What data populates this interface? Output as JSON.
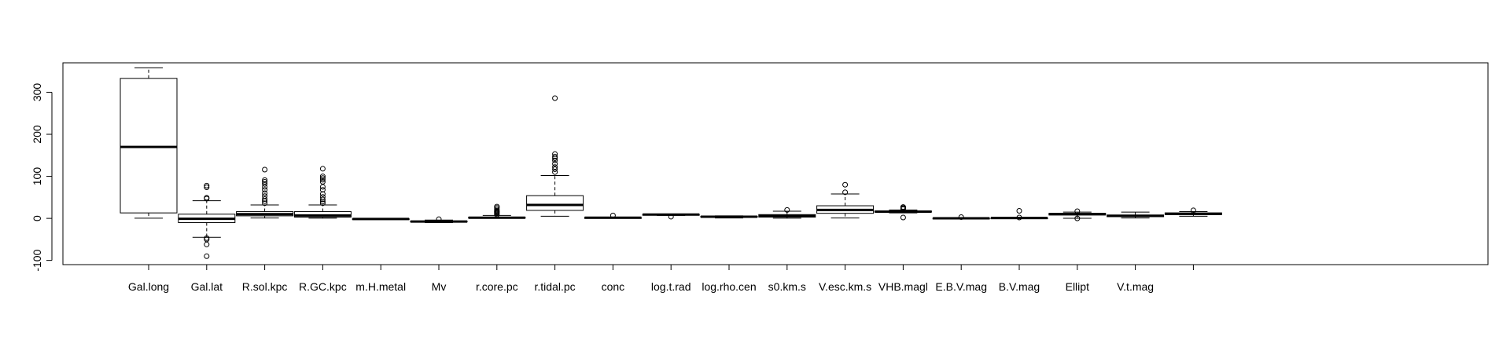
{
  "chart_data": {
    "type": "boxplot",
    "ylim": [
      -110,
      370
    ],
    "y_ticks": [
      -100,
      0,
      100,
      200,
      300
    ],
    "y_tick_labels": [
      "-100",
      "0",
      "100",
      "200",
      "300"
    ],
    "boxes": [
      {
        "label": "Gal.long",
        "min": 0.5,
        "q1": 13,
        "median": 170,
        "q3": 333,
        "max": 358,
        "outliers": []
      },
      {
        "label": "Gal.lat",
        "min": -45,
        "q1": -10,
        "median": -1,
        "q3": 10,
        "max": 42,
        "outliers": [
          47,
          49,
          74,
          78,
          -47,
          -50,
          -62,
          -90
        ]
      },
      {
        "label": "R.sol.kpc",
        "min": 1,
        "q1": 6,
        "median": 10,
        "q3": 16,
        "max": 32,
        "outliers": [
          36,
          41,
          46,
          53,
          60,
          68,
          75,
          82,
          87,
          91,
          116
        ]
      },
      {
        "label": "R.GC.kpc",
        "min": 0.5,
        "q1": 3,
        "median": 7,
        "q3": 16,
        "max": 32,
        "outliers": [
          36,
          40,
          45,
          51,
          58,
          68,
          75,
          87,
          92,
          96,
          100,
          118
        ]
      },
      {
        "label": "m.H.metal",
        "min": -2.5,
        "q1": -2,
        "median": -1.5,
        "q3": -1,
        "max": 0,
        "outliers": []
      },
      {
        "label": "Mv",
        "min": -10,
        "q1": -8.5,
        "median": -7.5,
        "q3": -6.5,
        "max": -4,
        "outliers": [
          -2
        ]
      },
      {
        "label": "r.core.pc",
        "min": 0.1,
        "q1": 0.5,
        "median": 1.5,
        "q3": 3,
        "max": 7,
        "outliers": [
          9,
          12,
          14,
          16,
          18,
          21,
          25,
          28
        ]
      },
      {
        "label": "r.tidal.pc",
        "min": 5,
        "q1": 19,
        "median": 32,
        "q3": 54,
        "max": 102,
        "outliers": [
          110,
          117,
          122,
          130,
          138,
          143,
          147,
          153,
          286
        ]
      },
      {
        "label": "conc",
        "min": 0.5,
        "q1": 1.2,
        "median": 1.5,
        "q3": 1.9,
        "max": 2.5,
        "outliers": [
          7
        ]
      },
      {
        "label": "log.t.rad",
        "min": 7,
        "q1": 8.5,
        "median": 9,
        "q3": 9.5,
        "max": 10.5,
        "outliers": [
          4
        ]
      },
      {
        "label": "log.rho.cen",
        "min": 1,
        "q1": 3,
        "median": 4,
        "q3": 5,
        "max": 6,
        "outliers": []
      },
      {
        "label": "s0.km.s",
        "min": 0.5,
        "q1": 3,
        "median": 5.5,
        "q3": 9,
        "max": 17,
        "outliers": [
          20
        ]
      },
      {
        "label": "V.esc.km.s",
        "min": 1,
        "q1": 12,
        "median": 20,
        "q3": 30,
        "max": 58,
        "outliers": [
          62,
          80
        ]
      },
      {
        "label": "VHB.magl",
        "min": 13,
        "q1": 15,
        "median": 16,
        "q3": 17.5,
        "max": 20,
        "outliers": [
          22,
          24,
          26,
          27,
          2
        ]
      },
      {
        "label": "E.B.V.mag",
        "min": 0,
        "q1": 0.1,
        "median": 0.3,
        "q3": 0.6,
        "max": 1.5,
        "outliers": [
          3
        ]
      },
      {
        "label": "B.V.mag",
        "min": 0.4,
        "q1": 0.6,
        "median": 0.8,
        "q3": 1,
        "max": 1.6,
        "outliers": [
          2,
          18
        ]
      },
      {
        "label": "Ellipt",
        "min": 0.1,
        "q1": 8,
        "median": 10,
        "q3": 12,
        "max": 15,
        "outliers": [
          17,
          0
        ]
      },
      {
        "label": "V.t.mag",
        "min": 1,
        "q1": 4,
        "median": 6,
        "q3": 8,
        "max": 15,
        "outliers": []
      },
      {
        "label": "",
        "min": 5,
        "q1": 9,
        "median": 11,
        "q3": 13,
        "max": 16,
        "outliers": [
          19
        ]
      }
    ]
  }
}
